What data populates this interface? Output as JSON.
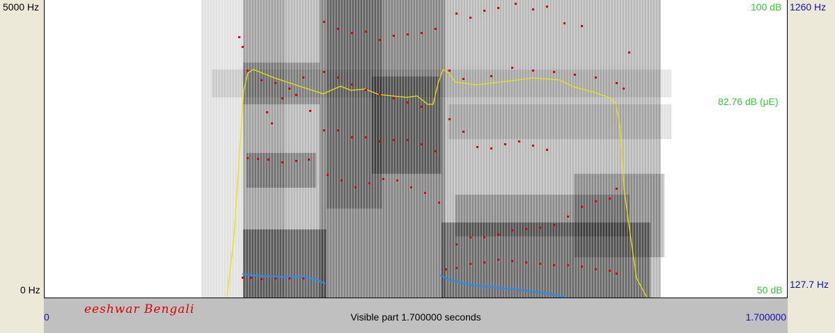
{
  "axes": {
    "freq_top": "5000 Hz",
    "freq_bottom": "0 Hz",
    "intensity_top": "100 dB",
    "intensity_mid": "82.76 dB (μE)",
    "intensity_bottom": "50 dB",
    "pitch_top": "1260 Hz",
    "pitch_bottom": "127.7 Hz"
  },
  "status": {
    "selection_start": "0",
    "visible_part": "Visible part 1.700000 seconds",
    "selection_end": "1.700000"
  },
  "watermark": "eeshwar Bengali",
  "colors": {
    "intensity": "#E6E600",
    "pitch": "#1E90FF",
    "formant": "#E00000",
    "intensity_label": "#33CC33",
    "pitch_label": "#1010B0"
  }
}
